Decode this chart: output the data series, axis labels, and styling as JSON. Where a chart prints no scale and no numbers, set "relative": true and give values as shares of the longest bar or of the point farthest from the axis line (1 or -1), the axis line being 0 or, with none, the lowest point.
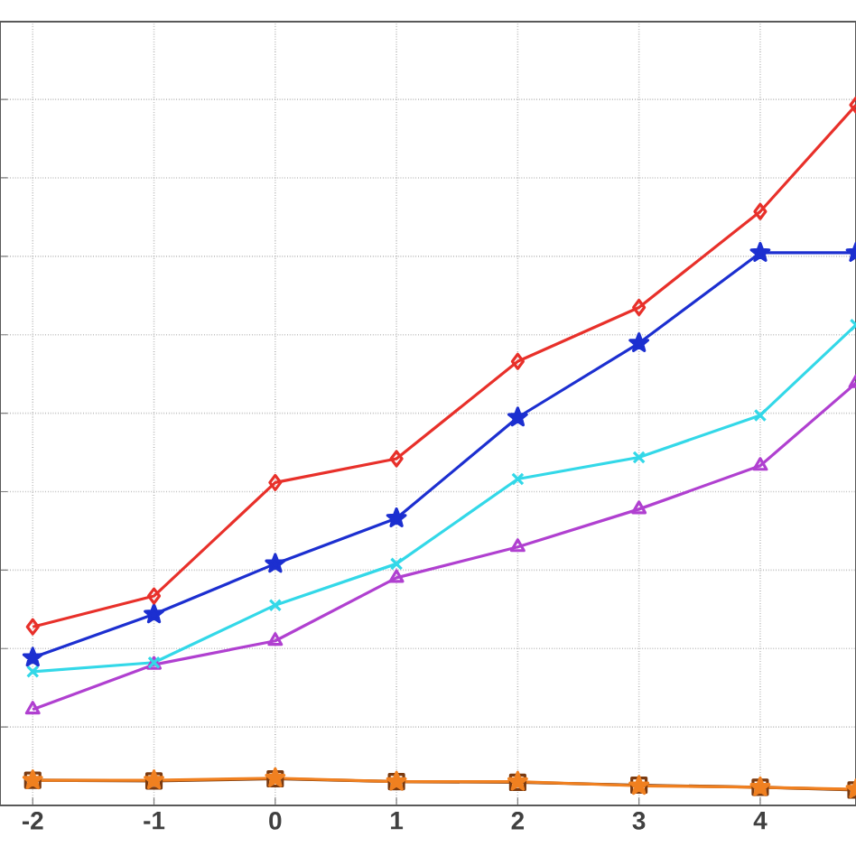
{
  "chart_data": {
    "type": "line",
    "relative": true,
    "grid": true,
    "line_style": "solid",
    "x": [
      -2,
      -1,
      0,
      1,
      2,
      3,
      4,
      4.79
    ],
    "xlim": [
      -2.27,
      4.79
    ],
    "xticks": [
      -2,
      -1,
      0,
      1,
      2,
      3,
      4
    ],
    "series": [
      {
        "color": "#e8302a",
        "marker": "diamond",
        "values": [
          0.255,
          0.299,
          0.461,
          0.495,
          0.634,
          0.711,
          0.848,
          1
        ]
      },
      {
        "color": "#1c2fd0",
        "marker": "star",
        "values": [
          0.211,
          0.273,
          0.345,
          0.41,
          0.554,
          0.66,
          0.789,
          0.789
        ]
      },
      {
        "color": "#33d8e8",
        "marker": "cross",
        "values": [
          0.191,
          0.204,
          0.286,
          0.345,
          0.466,
          0.497,
          0.557,
          0.686
        ]
      },
      {
        "color": "#b040d0",
        "marker": "triangle",
        "values": [
          0.137,
          0.201,
          0.235,
          0.325,
          0.369,
          0.423,
          0.485,
          0.603
        ]
      },
      {
        "color": "#f08020",
        "marker": "star",
        "values": [
          0.036,
          0.036,
          0.039,
          0.034,
          0.034,
          0.028,
          0.026,
          0.023
        ]
      },
      {
        "color": "#7a3a10",
        "marker": "square",
        "values": [
          0.036,
          0.035,
          0.038,
          0.034,
          0.033,
          0.029,
          0.026,
          0.022
        ]
      }
    ]
  }
}
